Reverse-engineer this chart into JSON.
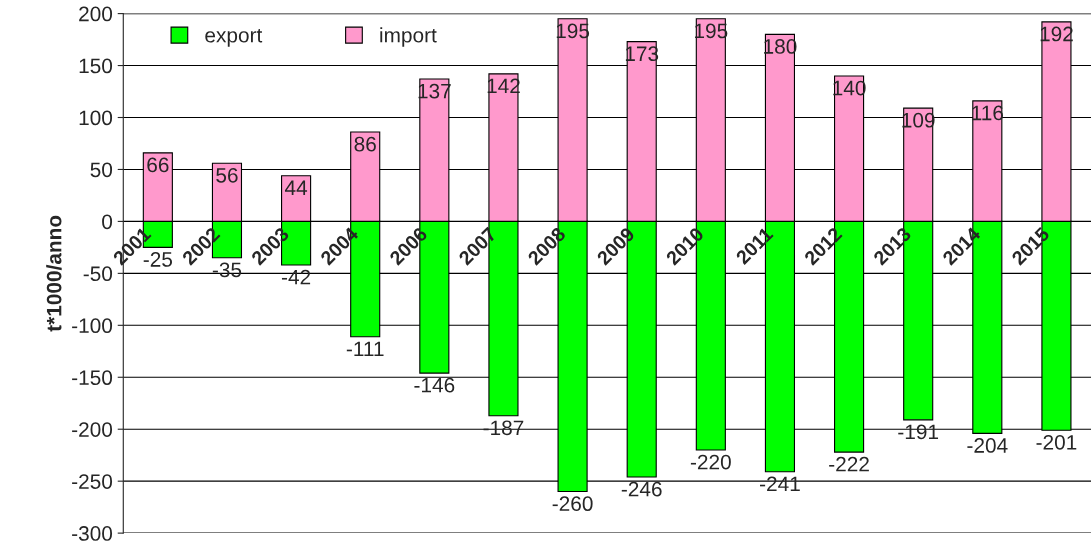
{
  "chart_data": {
    "type": "bar",
    "ylabel": "t*1000/anno",
    "categories": [
      "2001",
      "2002",
      "2003",
      "2004",
      "2006",
      "2007",
      "2008",
      "2009",
      "2010",
      "2011",
      "2012",
      "2013",
      "2014",
      "2015"
    ],
    "series": [
      {
        "name": "export",
        "color": "#00ff00",
        "values": [
          -25,
          -35,
          -42,
          -111,
          -146,
          -187,
          -260,
          -246,
          -220,
          -241,
          -222,
          -191,
          -204,
          -201
        ]
      },
      {
        "name": "import",
        "color": "#ff99cc",
        "values": [
          66,
          56,
          44,
          86,
          137,
          142,
          195,
          173,
          195,
          180,
          140,
          109,
          116,
          192
        ]
      }
    ],
    "stacked": true,
    "data_labels": true,
    "ylim": [
      -300,
      200
    ],
    "yticks": [
      -300,
      -250,
      -200,
      -150,
      -100,
      -50,
      0,
      50,
      100,
      150,
      200
    ],
    "grid": "y",
    "legend": "top left"
  }
}
